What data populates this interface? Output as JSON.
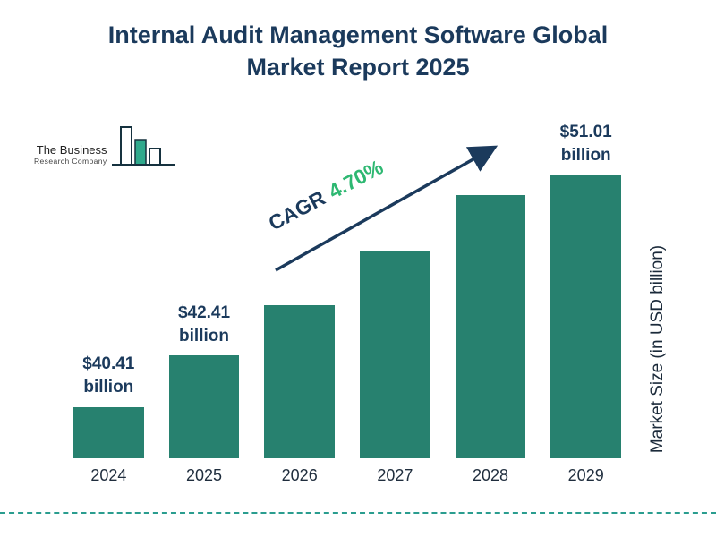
{
  "title": "Internal Audit Management Software Global Market Report 2025",
  "logo": {
    "line1": "The Business",
    "line2": "Research Company"
  },
  "annotation": {
    "cagr_label": "CAGR",
    "cagr_value": "4.70%"
  },
  "chart_data": {
    "type": "bar",
    "title": "Internal Audit Management Software Global Market Report 2025",
    "categories": [
      "2024",
      "2025",
      "2026",
      "2027",
      "2028",
      "2029"
    ],
    "values": [
      40.41,
      42.41,
      44.4,
      46.5,
      48.7,
      51.01
    ],
    "bar_labels": [
      {
        "value": "$40.41",
        "unit": "billion"
      },
      {
        "value": "$42.41",
        "unit": "billion"
      },
      null,
      null,
      null,
      {
        "value": "$51.01",
        "unit": "billion"
      }
    ],
    "xlabel": "",
    "ylabel": "Market Size (in USD billion)",
    "ylim": [
      38.4,
      51.6
    ],
    "grid": false,
    "legend": false,
    "cagr": "4.70%",
    "colors": {
      "bar": "#27816f",
      "accent_green": "#2eb872",
      "navy": "#1b3a5c",
      "dashed_line": "#2a9d8f"
    }
  }
}
